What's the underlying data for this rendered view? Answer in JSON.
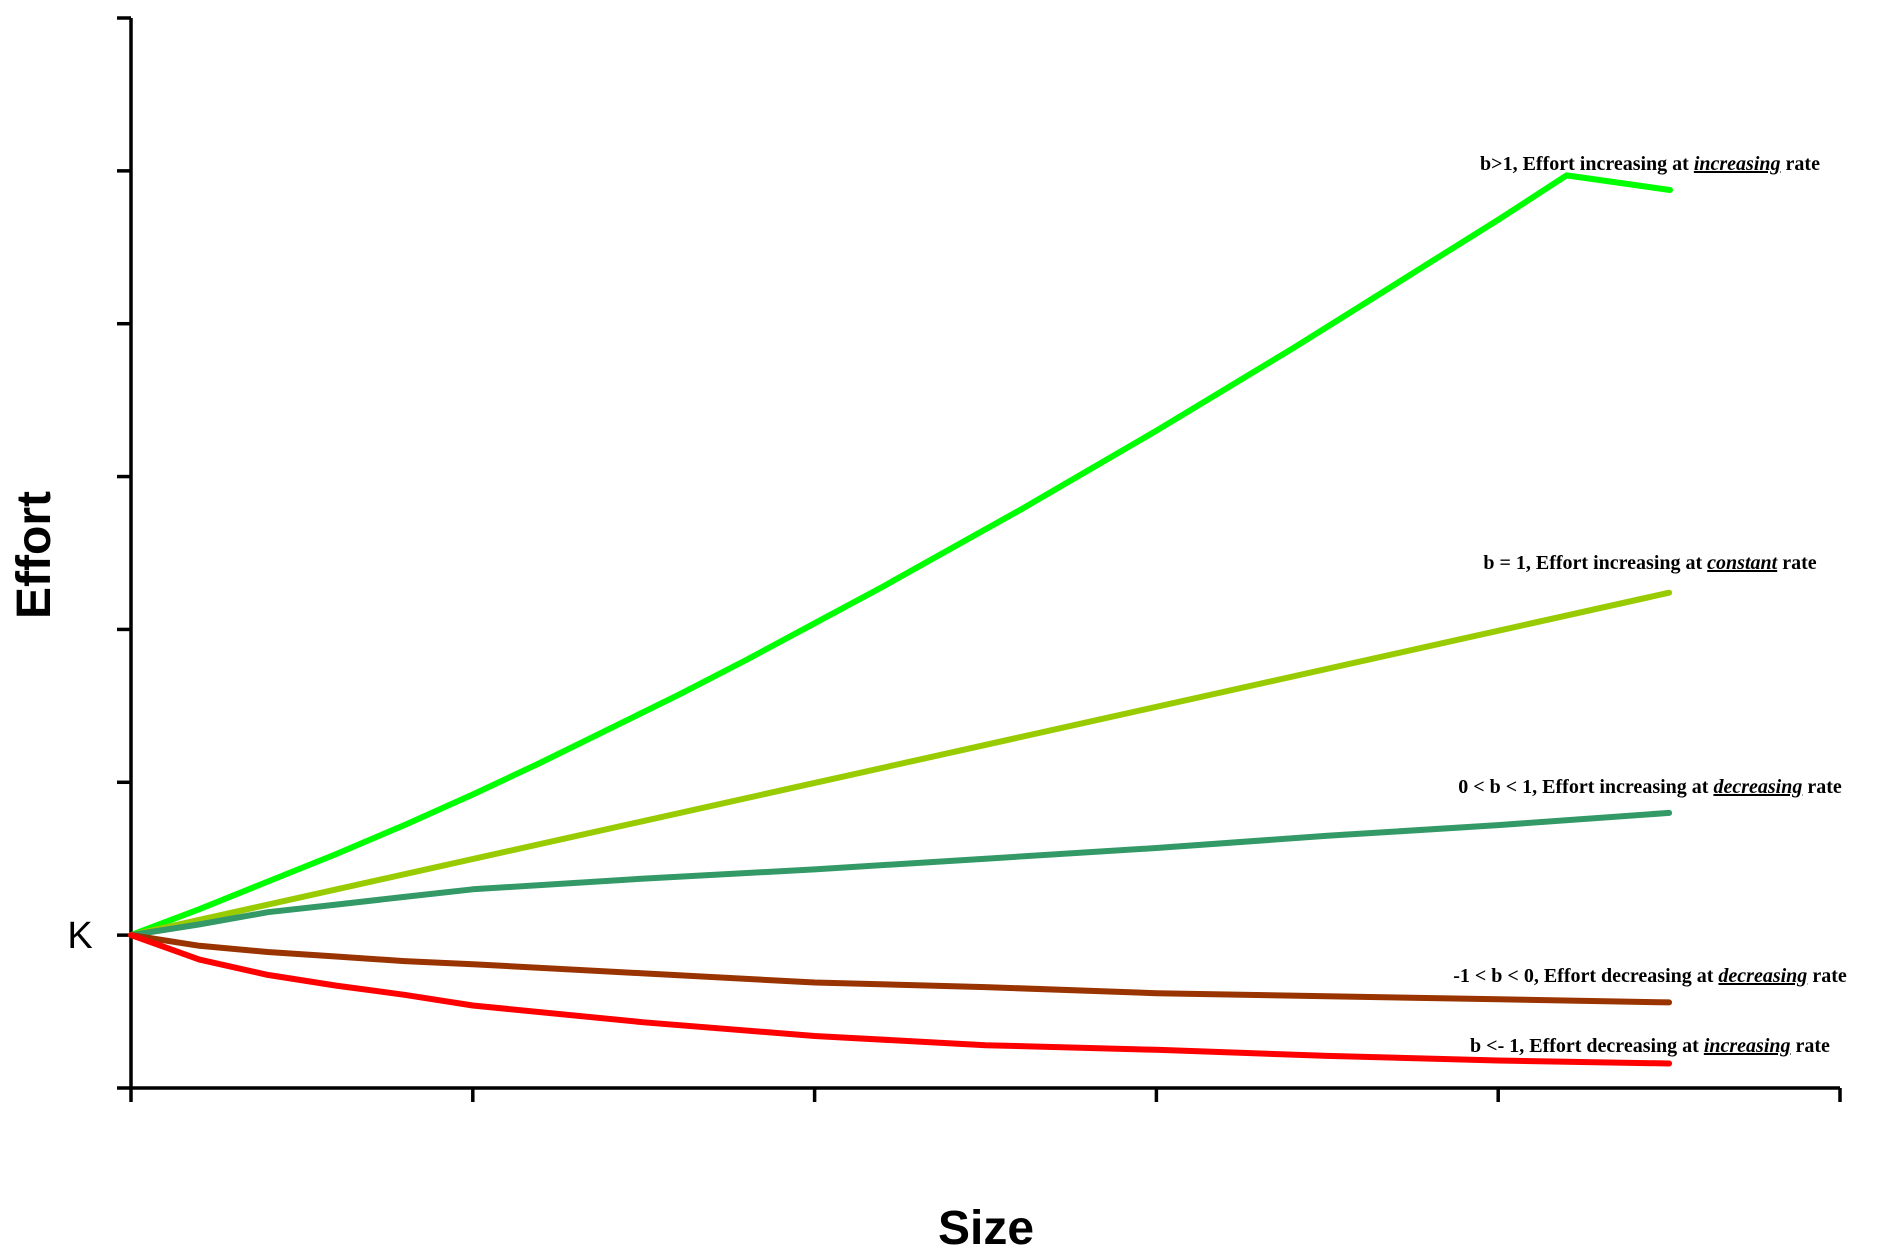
{
  "chart_data": {
    "type": "line",
    "title": "",
    "xlabel": "Size",
    "ylabel": "Effort",
    "y_origin_label": "K",
    "xlim": [
      0,
      5
    ],
    "ylim": [
      -1,
      6
    ],
    "x_ticks": [
      0,
      1,
      2,
      3,
      4,
      5
    ],
    "y_ticks": [
      -1,
      0,
      1,
      2,
      3,
      4,
      5,
      6
    ],
    "tick_labels_shown": false,
    "grid": false,
    "legend": "none (inline annotations at line ends)",
    "series": [
      {
        "color": "#00ff00",
        "annotation": {
          "prefix": "b>1, Effort increasing at ",
          "emphasis": "increasing",
          "suffix": " rate"
        },
        "x": [
          0,
          0.2,
          0.4,
          0.6,
          0.8,
          1.0,
          1.2,
          1.4,
          1.6,
          1.8,
          2.0,
          2.2,
          2.4,
          2.6,
          2.8,
          3.0,
          3.2,
          3.4,
          3.6,
          3.8,
          4.0,
          4.2,
          4.5
        ],
        "y": [
          0,
          0.17,
          0.35,
          0.53,
          0.72,
          0.92,
          1.13,
          1.35,
          1.57,
          1.8,
          2.04,
          2.28,
          2.53,
          2.78,
          3.04,
          3.3,
          3.57,
          3.84,
          4.12,
          4.4,
          4.68,
          4.97,
          4.85
        ]
      },
      {
        "color": "#99cc00",
        "annotation": {
          "prefix": "b = 1, Effort increasing at ",
          "emphasis": "constant",
          "suffix": " rate"
        },
        "x": [
          0,
          4.5
        ],
        "y": [
          0,
          2.24
        ]
      },
      {
        "color": "#339966",
        "annotation": {
          "prefix": "0 < b < 1, Effort increasing at ",
          "emphasis": "decreasing",
          "suffix": " rate"
        },
        "x": [
          0,
          0.2,
          0.4,
          0.6,
          0.8,
          1.0,
          1.5,
          2.0,
          2.5,
          3.0,
          3.5,
          4.0,
          4.5
        ],
        "y": [
          0,
          0.07,
          0.15,
          0.2,
          0.25,
          0.3,
          0.37,
          0.43,
          0.5,
          0.57,
          0.65,
          0.72,
          0.8
        ]
      },
      {
        "color": "#993300",
        "annotation": {
          "prefix": "-1 < b < 0, Effort decreasing at ",
          "emphasis": "decreasing",
          "suffix": " rate"
        },
        "x": [
          0,
          0.2,
          0.4,
          0.6,
          0.8,
          1.0,
          1.5,
          2.0,
          2.5,
          3.0,
          3.5,
          4.0,
          4.5
        ],
        "y": [
          0,
          -0.07,
          -0.11,
          -0.14,
          -0.17,
          -0.19,
          -0.25,
          -0.31,
          -0.34,
          -0.38,
          -0.4,
          -0.42,
          -0.44
        ]
      },
      {
        "color": "#ff0000",
        "annotation": {
          "prefix": "b <- 1, Effort decreasing at ",
          "emphasis": "increasing",
          "suffix": "  rate"
        },
        "x": [
          0,
          0.2,
          0.4,
          0.6,
          0.8,
          1.0,
          1.5,
          2.0,
          2.5,
          3.0,
          3.5,
          4.0,
          4.5
        ],
        "y": [
          0,
          -0.16,
          -0.26,
          -0.33,
          -0.39,
          -0.46,
          -0.57,
          -0.66,
          -0.72,
          -0.75,
          -0.79,
          -0.82,
          -0.84
        ]
      }
    ]
  }
}
